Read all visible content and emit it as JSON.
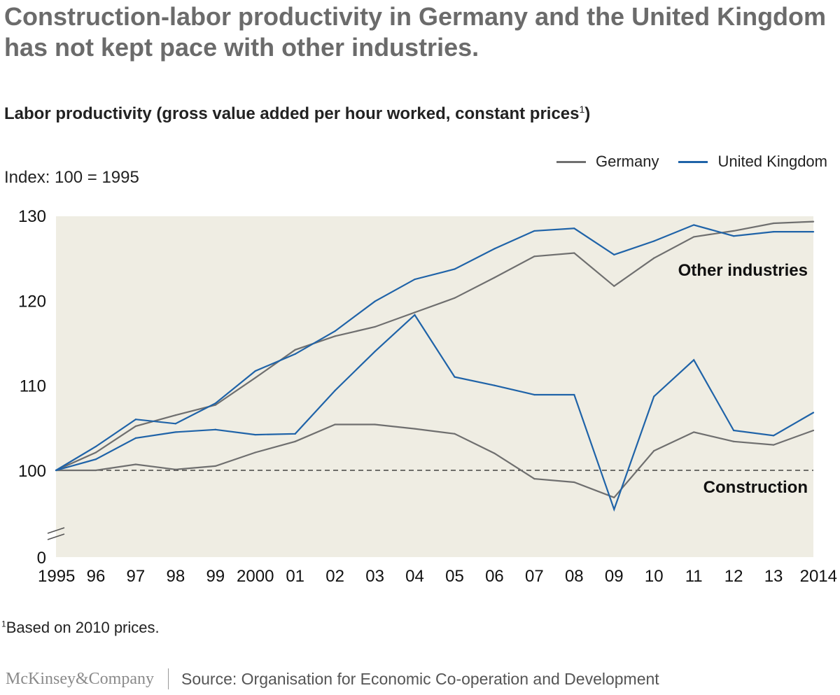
{
  "title": "Construction-labor productivity in Germany and the United Kingdom has not kept pace with other industries.",
  "subtitle": "Labor productivity (gross value added per hour worked, constant prices",
  "subtitle_note_marker": "1",
  "subtitle_close": ")",
  "index_label": "Index: 100 = 1995",
  "footnote_marker": "1",
  "footnote_text": "Based on 2010 prices.",
  "brand": "McKinsey&Company",
  "source": "Source: Organisation for Economic Co-operation and Development",
  "colors": {
    "germany": "#6f6f6f",
    "uk": "#1f63a8",
    "plot_bg": "#efede3",
    "baseline": "#222222"
  },
  "chart_data": {
    "type": "line",
    "categories": [
      "1995",
      "96",
      "97",
      "98",
      "99",
      "2000",
      "01",
      "02",
      "03",
      "04",
      "05",
      "06",
      "07",
      "08",
      "09",
      "10",
      "11",
      "12",
      "13",
      "2014"
    ],
    "y_ticks": [
      "0",
      "100",
      "110",
      "120",
      "130"
    ],
    "ylim": [
      0,
      130
    ],
    "y_axis_break": "between 0 and 100; visible range 92.5–130",
    "reference_line": 100,
    "legend": [
      "Germany",
      "United Kingdom"
    ],
    "legend_position": "top-right",
    "annotations": [
      "Other industries",
      "Construction"
    ],
    "groups": [
      {
        "label": "Other industries",
        "series": [
          {
            "name": "Germany",
            "values": [
              100,
              102.1,
              105.2,
              106.5,
              107.7,
              110.9,
              114.2,
              115.8,
              116.9,
              118.6,
              120.3,
              122.7,
              125.2,
              125.6,
              121.7,
              125.0,
              127.5,
              128.2,
              129.1,
              129.3
            ]
          },
          {
            "name": "United Kingdom",
            "values": [
              100,
              102.8,
              106.0,
              105.5,
              107.9,
              111.7,
              113.7,
              116.4,
              119.9,
              122.5,
              123.7,
              126.1,
              128.2,
              128.5,
              125.4,
              127.0,
              128.9,
              127.6,
              128.1,
              128.1
            ]
          }
        ]
      },
      {
        "label": "Construction",
        "series": [
          {
            "name": "Germany",
            "values": [
              100,
              100.0,
              100.7,
              100.1,
              100.5,
              102.1,
              103.4,
              105.4,
              105.4,
              104.9,
              104.3,
              102.0,
              99.0,
              98.6,
              96.8,
              102.3,
              104.5,
              103.4,
              103.0,
              104.7
            ]
          },
          {
            "name": "United Kingdom",
            "values": [
              100,
              101.3,
              103.8,
              104.5,
              104.8,
              104.2,
              104.3,
              109.4,
              114.0,
              118.3,
              111.0,
              110.0,
              108.9,
              108.9,
              95.4,
              108.7,
              113.0,
              104.7,
              104.1,
              106.8
            ]
          }
        ]
      }
    ]
  }
}
